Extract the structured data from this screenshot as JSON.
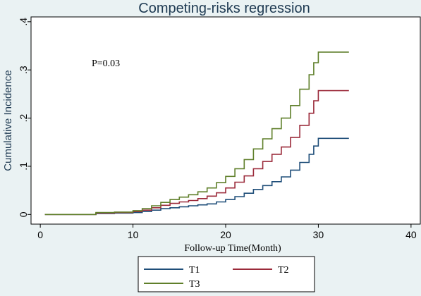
{
  "chart_data": {
    "type": "line",
    "title": "Competing-risks regression",
    "xlabel": "Follow-up Time(Month)",
    "ylabel": "Cumulative Incidence",
    "xlim": [
      -1,
      41
    ],
    "ylim": [
      -0.02,
      0.41
    ],
    "x_ticks": [
      0,
      10,
      20,
      30,
      40
    ],
    "y_ticks": [
      0,
      0.1,
      0.2,
      0.3,
      0.4
    ],
    "y_tick_labels": [
      "0",
      ".1",
      ".2",
      ".3",
      ".4"
    ],
    "grid": false,
    "legend_position": "bottom",
    "annotation": "P=0.03",
    "series": [
      {
        "name": "T1",
        "color": "#1f4e79",
        "points": [
          [
            0.5,
            0
          ],
          [
            5,
            0
          ],
          [
            6,
            0.002
          ],
          [
            8,
            0.003
          ],
          [
            10,
            0.004
          ],
          [
            11,
            0.006
          ],
          [
            12,
            0.009
          ],
          [
            13,
            0.012
          ],
          [
            14,
            0.014
          ],
          [
            15,
            0.016
          ],
          [
            16,
            0.018
          ],
          [
            17,
            0.02
          ],
          [
            18,
            0.022
          ],
          [
            19,
            0.026
          ],
          [
            20,
            0.031
          ],
          [
            21,
            0.037
          ],
          [
            22,
            0.044
          ],
          [
            23,
            0.052
          ],
          [
            24,
            0.06
          ],
          [
            25,
            0.068
          ],
          [
            26,
            0.078
          ],
          [
            27,
            0.092
          ],
          [
            28,
            0.108
          ],
          [
            29,
            0.125
          ],
          [
            29.5,
            0.142
          ],
          [
            30,
            0.158
          ],
          [
            33.3,
            0.158
          ]
        ]
      },
      {
        "name": "T2",
        "color": "#9b2a3a",
        "points": [
          [
            0.5,
            0
          ],
          [
            5,
            0
          ],
          [
            6,
            0.003
          ],
          [
            8,
            0.004
          ],
          [
            10,
            0.006
          ],
          [
            11,
            0.009
          ],
          [
            12,
            0.014
          ],
          [
            13,
            0.019
          ],
          [
            14,
            0.023
          ],
          [
            15,
            0.026
          ],
          [
            16,
            0.029
          ],
          [
            17,
            0.033
          ],
          [
            18,
            0.038
          ],
          [
            19,
            0.045
          ],
          [
            20,
            0.055
          ],
          [
            21,
            0.067
          ],
          [
            22,
            0.08
          ],
          [
            23,
            0.095
          ],
          [
            24,
            0.11
          ],
          [
            25,
            0.125
          ],
          [
            26,
            0.14
          ],
          [
            27,
            0.16
          ],
          [
            28,
            0.185
          ],
          [
            29,
            0.21
          ],
          [
            29.5,
            0.236
          ],
          [
            30,
            0.257
          ],
          [
            33.3,
            0.257
          ]
        ]
      },
      {
        "name": "T3",
        "color": "#5f7f2a",
        "points": [
          [
            0.5,
            0
          ],
          [
            5,
            0
          ],
          [
            6,
            0.004
          ],
          [
            8,
            0.005
          ],
          [
            10,
            0.008
          ],
          [
            11,
            0.012
          ],
          [
            12,
            0.018
          ],
          [
            13,
            0.025
          ],
          [
            14,
            0.031
          ],
          [
            15,
            0.036
          ],
          [
            16,
            0.041
          ],
          [
            17,
            0.047
          ],
          [
            18,
            0.055
          ],
          [
            19,
            0.066
          ],
          [
            20,
            0.079
          ],
          [
            21,
            0.095
          ],
          [
            22,
            0.114
          ],
          [
            23,
            0.136
          ],
          [
            24,
            0.157
          ],
          [
            25,
            0.178
          ],
          [
            26,
            0.2
          ],
          [
            27,
            0.226
          ],
          [
            28,
            0.26
          ],
          [
            29,
            0.29
          ],
          [
            29.5,
            0.315
          ],
          [
            30,
            0.337
          ],
          [
            33.3,
            0.337
          ]
        ]
      }
    ]
  }
}
